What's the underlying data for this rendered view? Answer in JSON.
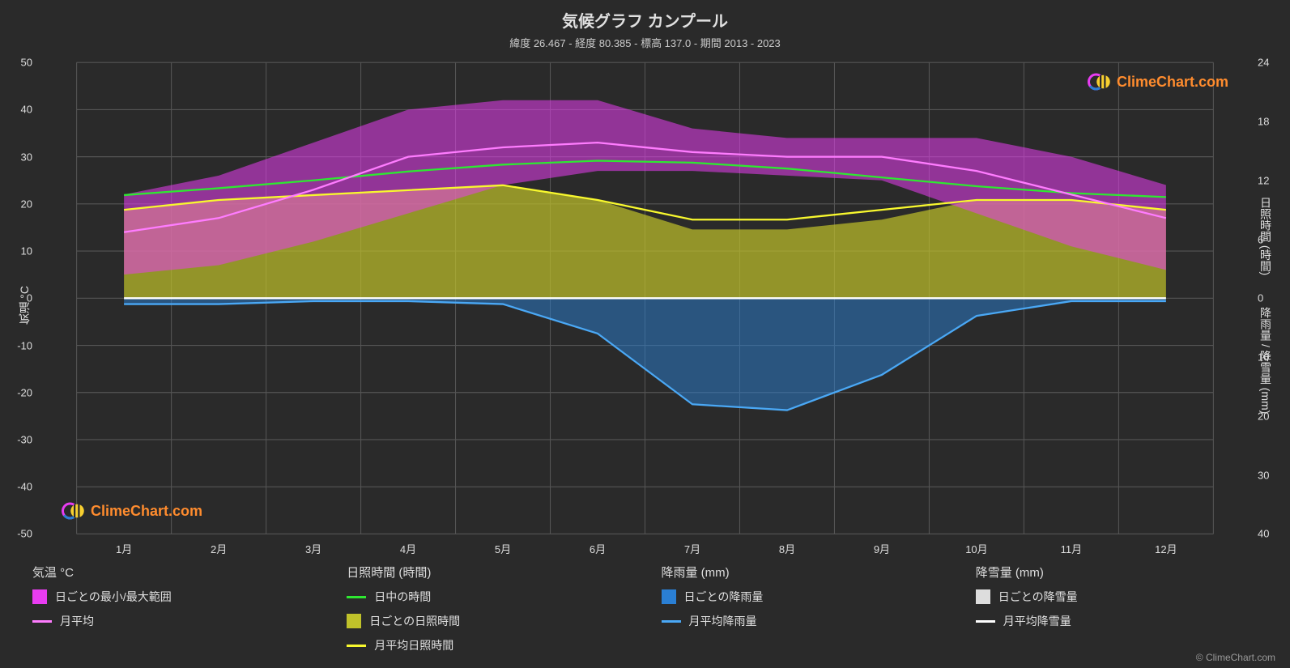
{
  "title": "気候グラフ カンプール",
  "subtitle": "緯度 26.467 - 経度 80.385 - 標高 137.0 - 期間 2013 - 2023",
  "brand": "ClimeChart.com",
  "brand_color": "#ff8c2e",
  "credit": "© ClimeChart.com",
  "chart": {
    "background": "#2a2a2a",
    "grid_color": "#555555",
    "axis_font_size": 13,
    "x_categories": [
      "1月",
      "2月",
      "3月",
      "4月",
      "5月",
      "6月",
      "7月",
      "8月",
      "9月",
      "10月",
      "11月",
      "12月"
    ],
    "left_axis": {
      "label": "気温 °C",
      "min": -50,
      "max": 50,
      "step": 10,
      "ticks": [
        -50,
        -40,
        -30,
        -20,
        -10,
        0,
        10,
        20,
        30,
        40,
        50
      ]
    },
    "right_axis_top": {
      "label": "日照時間 (時間)",
      "min": 0,
      "max": 24,
      "step": 6,
      "ticks": [
        0,
        6,
        12,
        18,
        24
      ]
    },
    "right_axis_bottom": {
      "label": "降雨量 / 降雪量 (mm)",
      "min": 0,
      "max": 40,
      "step": 10,
      "ticks": [
        0,
        10,
        20,
        30,
        40
      ]
    },
    "series": {
      "temp_range_fill": {
        "color": "#e83cf1",
        "opacity": 0.55,
        "min": [
          5,
          7,
          12,
          18,
          24,
          27,
          27,
          26,
          25,
          18,
          11,
          6
        ],
        "max": [
          22,
          26,
          33,
          40,
          42,
          42,
          36,
          34,
          34,
          34,
          30,
          24
        ]
      },
      "temp_avg_line": {
        "color": "#ff7cff",
        "width": 2,
        "values": [
          14,
          17,
          23,
          30,
          32,
          33,
          31,
          30,
          30,
          27,
          22,
          17
        ]
      },
      "daylight_line": {
        "color": "#2ee831",
        "width": 2,
        "values": [
          10.5,
          11.2,
          12,
          12.9,
          13.6,
          14,
          13.8,
          13.2,
          12.3,
          11.4,
          10.7,
          10.3
        ]
      },
      "sunshine_fill": {
        "color": "#c0c22a",
        "opacity": 0.7,
        "values": [
          9,
          10,
          10.5,
          11,
          11.5,
          10,
          7,
          7,
          8,
          10,
          10,
          9
        ]
      },
      "sunshine_avg_line": {
        "color": "#f8f82e",
        "width": 2,
        "values": [
          9,
          10,
          10.5,
          11,
          11.5,
          10,
          8,
          8,
          9,
          10,
          10,
          9
        ]
      },
      "rain_fill": {
        "color": "#2a7fd4",
        "opacity": 0.5,
        "values": [
          1,
          1,
          0.5,
          0.5,
          1,
          6,
          18,
          19,
          13,
          3,
          0.5,
          0.5
        ]
      },
      "rain_avg_line": {
        "color": "#4aa8f5",
        "width": 2,
        "values": [
          1,
          1,
          0.5,
          0.5,
          1,
          6,
          18,
          19,
          13,
          3,
          0.5,
          0.5
        ]
      },
      "snow_fill": {
        "color": "#dddddd",
        "opacity": 0.5,
        "values": [
          0,
          0,
          0,
          0,
          0,
          0,
          0,
          0,
          0,
          0,
          0,
          0
        ]
      },
      "snow_avg_line": {
        "color": "#ffffff",
        "width": 2,
        "values": [
          0,
          0,
          0,
          0,
          0,
          0,
          0,
          0,
          0,
          0,
          0,
          0
        ]
      }
    }
  },
  "legend": {
    "groups": [
      {
        "heading": "気温 °C",
        "items": [
          {
            "type": "swatch",
            "color": "#e83cf1",
            "label": "日ごとの最小/最大範囲"
          },
          {
            "type": "line",
            "color": "#ff7cff",
            "label": "月平均"
          }
        ]
      },
      {
        "heading": "日照時間 (時間)",
        "items": [
          {
            "type": "line",
            "color": "#2ee831",
            "label": "日中の時間"
          },
          {
            "type": "swatch",
            "color": "#c0c22a",
            "label": "日ごとの日照時間"
          },
          {
            "type": "line",
            "color": "#f8f82e",
            "label": "月平均日照時間"
          }
        ]
      },
      {
        "heading": "降雨量 (mm)",
        "items": [
          {
            "type": "swatch",
            "color": "#2a7fd4",
            "label": "日ごとの降雨量"
          },
          {
            "type": "line",
            "color": "#4aa8f5",
            "label": "月平均降雨量"
          }
        ]
      },
      {
        "heading": "降雪量 (mm)",
        "items": [
          {
            "type": "swatch",
            "color": "#dddddd",
            "label": "日ごとの降雪量"
          },
          {
            "type": "line",
            "color": "#ffffff",
            "label": "月平均降雪量"
          }
        ]
      }
    ]
  }
}
